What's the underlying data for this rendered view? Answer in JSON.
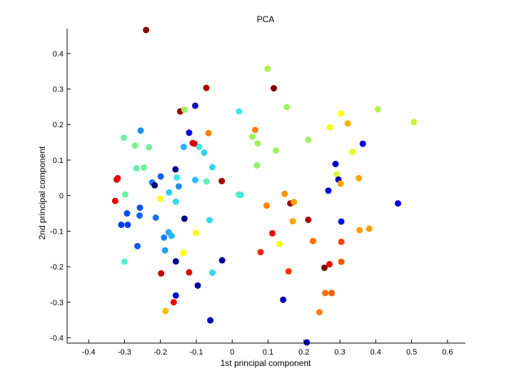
{
  "chart_data": {
    "type": "scatter",
    "title": "PCA",
    "xlabel": "1st principal component",
    "ylabel": "2nd principal component",
    "xlim": [
      -0.46,
      0.65
    ],
    "ylim": [
      -0.415,
      0.47
    ],
    "xticks": [
      -0.4,
      -0.3,
      -0.2,
      -0.1,
      0,
      0.1,
      0.2,
      0.3,
      0.4,
      0.5,
      0.6
    ],
    "xtick_labels": [
      "-0.4",
      "-0.3",
      "-0.2",
      "-0.1",
      "0",
      "0.1",
      "0.2",
      "0.3",
      "0.4",
      "0.5",
      "0.6"
    ],
    "yticks": [
      -0.4,
      -0.3,
      -0.2,
      -0.1,
      0,
      0.1,
      0.2,
      0.3,
      0.4
    ],
    "ytick_labels": [
      "-0.4",
      "-0.3",
      "-0.2",
      "-0.1",
      "0",
      "0.1",
      "0.2",
      "0.3",
      "0.4"
    ],
    "grid": false,
    "box": "left-bottom",
    "colormap": "jet",
    "points": [
      {
        "x": -0.24,
        "y": 0.466,
        "color": "#8b0000"
      },
      {
        "x": -0.072,
        "y": 0.303,
        "color": "#a80000"
      },
      {
        "x": 0.099,
        "y": 0.357,
        "color": "#b0f050"
      },
      {
        "x": 0.116,
        "y": 0.302,
        "color": "#800000"
      },
      {
        "x": -0.103,
        "y": 0.253,
        "color": "#1010b0"
      },
      {
        "x": -0.145,
        "y": 0.237,
        "color": "#a00000"
      },
      {
        "x": -0.133,
        "y": 0.242,
        "color": "#a0f060"
      },
      {
        "x": 0.019,
        "y": 0.237,
        "color": "#40e8e0"
      },
      {
        "x": 0.152,
        "y": 0.249,
        "color": "#a0f060"
      },
      {
        "x": 0.406,
        "y": 0.243,
        "color": "#b8f048"
      },
      {
        "x": 0.303,
        "y": 0.231,
        "color": "#ffff00"
      },
      {
        "x": 0.506,
        "y": 0.207,
        "color": "#c8f038"
      },
      {
        "x": 0.322,
        "y": 0.203,
        "color": "#ffb000"
      },
      {
        "x": 0.272,
        "y": 0.192,
        "color": "#f0ff10"
      },
      {
        "x": -0.255,
        "y": 0.183,
        "color": "#1890f0"
      },
      {
        "x": -0.12,
        "y": 0.177,
        "color": "#0000e0"
      },
      {
        "x": -0.066,
        "y": 0.176,
        "color": "#ff8000"
      },
      {
        "x": 0.064,
        "y": 0.185,
        "color": "#ff8000"
      },
      {
        "x": 0.056,
        "y": 0.166,
        "color": "#a0f060"
      },
      {
        "x": 0.071,
        "y": 0.147,
        "color": "#a0f060"
      },
      {
        "x": 0.212,
        "y": 0.157,
        "color": "#a0f060"
      },
      {
        "x": 0.364,
        "y": 0.146,
        "color": "#0000d8"
      },
      {
        "x": -0.302,
        "y": 0.163,
        "color": "#70f0a0"
      },
      {
        "x": -0.271,
        "y": 0.141,
        "color": "#80f090"
      },
      {
        "x": -0.232,
        "y": 0.136,
        "color": "#70f0a0"
      },
      {
        "x": -0.11,
        "y": 0.148,
        "color": "#d00000"
      },
      {
        "x": -0.105,
        "y": 0.146,
        "color": "#e00000"
      },
      {
        "x": -0.135,
        "y": 0.137,
        "color": "#28b0f0"
      },
      {
        "x": -0.092,
        "y": 0.137,
        "color": "#40e8e0"
      },
      {
        "x": -0.078,
        "y": 0.121,
        "color": "#30d0f0"
      },
      {
        "x": 0.122,
        "y": 0.127,
        "color": "#a0f060"
      },
      {
        "x": 0.335,
        "y": 0.123,
        "color": "#e8ff18"
      },
      {
        "x": 0.288,
        "y": 0.089,
        "color": "#0000c8"
      },
      {
        "x": -0.267,
        "y": 0.077,
        "color": "#60f0b0"
      },
      {
        "x": -0.246,
        "y": 0.079,
        "color": "#70f0a0"
      },
      {
        "x": -0.158,
        "y": 0.074,
        "color": "#000090"
      },
      {
        "x": -0.055,
        "y": 0.08,
        "color": "#30d8f0"
      },
      {
        "x": 0.069,
        "y": 0.085,
        "color": "#90f070"
      },
      {
        "x": -0.199,
        "y": 0.054,
        "color": "#1060f0"
      },
      {
        "x": -0.154,
        "y": 0.051,
        "color": "#40e8e0"
      },
      {
        "x": -0.103,
        "y": 0.044,
        "color": "#28c0f0"
      },
      {
        "x": -0.072,
        "y": 0.04,
        "color": "#60f0b0"
      },
      {
        "x": -0.029,
        "y": 0.041,
        "color": "#a00000"
      },
      {
        "x": 0.291,
        "y": 0.06,
        "color": "#d0ff30"
      },
      {
        "x": 0.296,
        "y": 0.045,
        "color": "#0000c0"
      },
      {
        "x": 0.353,
        "y": 0.049,
        "color": "#ffa800"
      },
      {
        "x": -0.322,
        "y": 0.045,
        "color": "#e00000"
      },
      {
        "x": -0.319,
        "y": 0.049,
        "color": "#f00000"
      },
      {
        "x": -0.223,
        "y": 0.037,
        "color": "#1878f0"
      },
      {
        "x": -0.216,
        "y": 0.029,
        "color": "#000070"
      },
      {
        "x": -0.149,
        "y": 0.026,
        "color": "#1890f0"
      },
      {
        "x": 0.302,
        "y": 0.034,
        "color": "#ffa000"
      },
      {
        "x": 0.268,
        "y": 0.014,
        "color": "#0008e0"
      },
      {
        "x": -0.298,
        "y": 0.003,
        "color": "#70f0a0"
      },
      {
        "x": -0.176,
        "y": 0.009,
        "color": "#30c8f0"
      },
      {
        "x": 0.018,
        "y": 0.003,
        "color": "#60f0b0"
      },
      {
        "x": 0.024,
        "y": 0.002,
        "color": "#40e8e0"
      },
      {
        "x": 0.146,
        "y": 0.005,
        "color": "#ff9000"
      },
      {
        "x": -0.326,
        "y": -0.015,
        "color": "#e80000"
      },
      {
        "x": -0.2,
        "y": -0.009,
        "color": "#ffff00"
      },
      {
        "x": -0.157,
        "y": -0.017,
        "color": "#30d8f0"
      },
      {
        "x": 0.162,
        "y": -0.022,
        "color": "#a00000"
      },
      {
        "x": 0.172,
        "y": -0.018,
        "color": "#ffa000"
      },
      {
        "x": 0.096,
        "y": -0.028,
        "color": "#ff8800"
      },
      {
        "x": 0.462,
        "y": -0.022,
        "color": "#0000d0"
      },
      {
        "x": -0.257,
        "y": -0.034,
        "color": "#1050f0"
      },
      {
        "x": -0.293,
        "y": -0.05,
        "color": "#0848f0"
      },
      {
        "x": -0.258,
        "y": -0.056,
        "color": "#1068f0"
      },
      {
        "x": -0.213,
        "y": -0.062,
        "color": "#1870f0"
      },
      {
        "x": -0.133,
        "y": -0.065,
        "color": "#000098"
      },
      {
        "x": -0.063,
        "y": -0.069,
        "color": "#30d8f0"
      },
      {
        "x": 0.169,
        "y": -0.072,
        "color": "#ffa000"
      },
      {
        "x": 0.212,
        "y": -0.068,
        "color": "#b00000"
      },
      {
        "x": 0.304,
        "y": -0.073,
        "color": "#0010f0"
      },
      {
        "x": -0.309,
        "y": -0.082,
        "color": "#0038f0"
      },
      {
        "x": -0.291,
        "y": -0.082,
        "color": "#0840f0"
      },
      {
        "x": -0.101,
        "y": -0.105,
        "color": "#ffff00"
      },
      {
        "x": 0.112,
        "y": -0.106,
        "color": "#e80000"
      },
      {
        "x": 0.355,
        "y": -0.097,
        "color": "#ffa000"
      },
      {
        "x": 0.382,
        "y": -0.093,
        "color": "#ff9800"
      },
      {
        "x": -0.177,
        "y": -0.103,
        "color": "#30a8f0"
      },
      {
        "x": -0.169,
        "y": -0.113,
        "color": "#28b8f0"
      },
      {
        "x": -0.19,
        "y": -0.118,
        "color": "#1880f0"
      },
      {
        "x": 0.225,
        "y": -0.128,
        "color": "#ff7000"
      },
      {
        "x": 0.132,
        "y": -0.136,
        "color": "#f0ff10"
      },
      {
        "x": 0.304,
        "y": -0.13,
        "color": "#ff4000"
      },
      {
        "x": -0.264,
        "y": -0.142,
        "color": "#1058f0"
      },
      {
        "x": -0.187,
        "y": -0.154,
        "color": "#20a0f0"
      },
      {
        "x": -0.136,
        "y": -0.161,
        "color": "#ffff00"
      },
      {
        "x": 0.079,
        "y": -0.159,
        "color": "#ff2000"
      },
      {
        "x": -0.3,
        "y": -0.186,
        "color": "#50f0d0"
      },
      {
        "x": -0.157,
        "y": -0.185,
        "color": "#000088"
      },
      {
        "x": -0.028,
        "y": -0.182,
        "color": "#0000a0"
      },
      {
        "x": 0.271,
        "y": -0.193,
        "color": "#f00000"
      },
      {
        "x": 0.304,
        "y": -0.186,
        "color": "#ff5000"
      },
      {
        "x": 0.257,
        "y": -0.203,
        "color": "#800000"
      },
      {
        "x": -0.198,
        "y": -0.219,
        "color": "#c00000"
      },
      {
        "x": -0.12,
        "y": -0.216,
        "color": "#e00000"
      },
      {
        "x": -0.055,
        "y": -0.217,
        "color": "#30d8f0"
      },
      {
        "x": 0.157,
        "y": -0.213,
        "color": "#ff3000"
      },
      {
        "x": -0.157,
        "y": -0.281,
        "color": "#0008c0"
      },
      {
        "x": -0.096,
        "y": -0.253,
        "color": "#0000a0"
      },
      {
        "x": 0.259,
        "y": -0.274,
        "color": "#ff7000"
      },
      {
        "x": 0.277,
        "y": -0.274,
        "color": "#ff5800"
      },
      {
        "x": -0.163,
        "y": -0.3,
        "color": "#f00000"
      },
      {
        "x": 0.142,
        "y": -0.293,
        "color": "#0000b0"
      },
      {
        "x": -0.186,
        "y": -0.325,
        "color": "#ffc000"
      },
      {
        "x": 0.243,
        "y": -0.328,
        "color": "#ff8000"
      },
      {
        "x": -0.061,
        "y": -0.351,
        "color": "#0000b8"
      },
      {
        "x": 0.208,
        "y": -0.413,
        "color": "#0000c0"
      }
    ]
  }
}
